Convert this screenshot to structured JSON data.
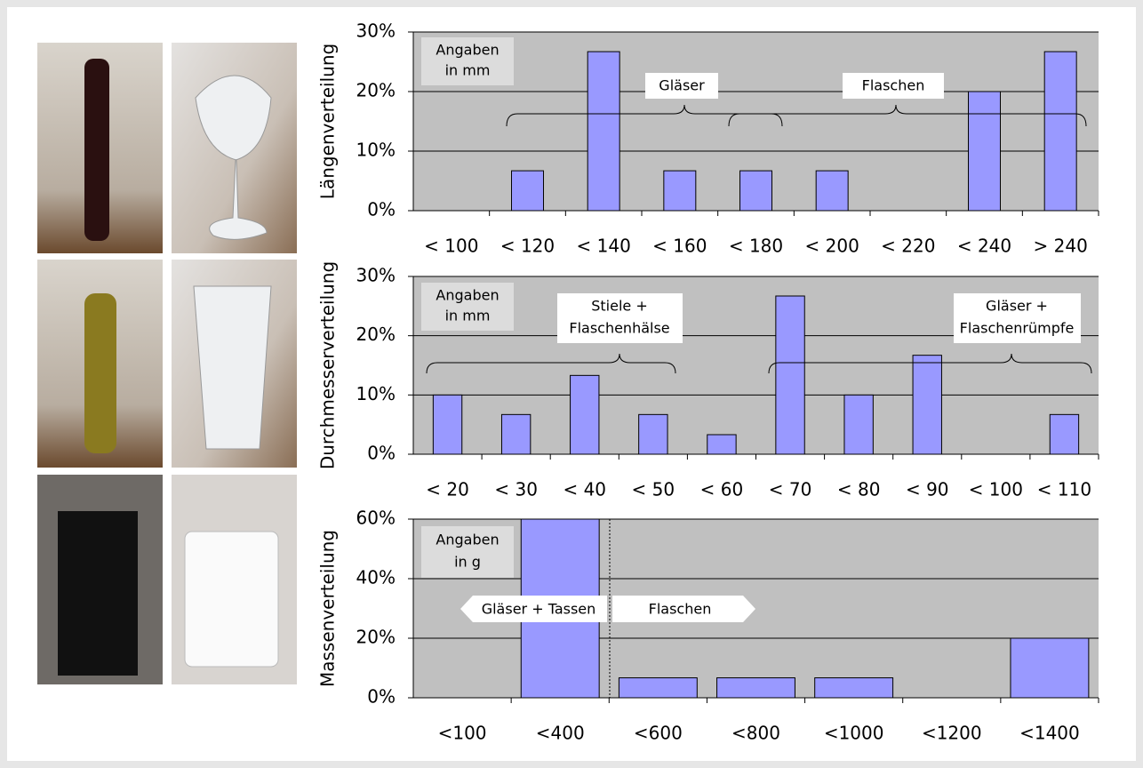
{
  "chart_data": [
    {
      "type": "bar",
      "y_label": "Längenverteilung",
      "categories": [
        "< 100",
        "< 120",
        "< 140",
        "< 160",
        "< 180",
        "< 200",
        "< 220",
        "< 240",
        "> 240"
      ],
      "values": [
        0,
        6.7,
        26.7,
        6.7,
        6.7,
        6.7,
        0,
        20,
        26.7
      ],
      "color": "#9999ff",
      "ylim": [
        0,
        30
      ],
      "yticks": [
        {
          "value": 0,
          "label": "0%"
        },
        {
          "value": 10,
          "label": "10%"
        },
        {
          "value": 20,
          "label": "20%"
        },
        {
          "value": 30,
          "label": "30%"
        }
      ],
      "grid": true,
      "annotations": [
        "Angaben",
        "in mm",
        "Gläser",
        "Flaschen"
      ]
    },
    {
      "type": "bar",
      "y_label": "Durchmesserverteilung",
      "categories": [
        "< 20",
        "< 30",
        "< 40",
        "< 50",
        "< 60",
        "< 70",
        "< 80",
        "< 90",
        "< 100",
        "< 110"
      ],
      "values": [
        10,
        6.7,
        13.3,
        6.7,
        3.3,
        26.7,
        10,
        16.7,
        0,
        6.7
      ],
      "color": "#9999ff",
      "ylim": [
        0,
        30
      ],
      "yticks": [
        {
          "value": 0,
          "label": "0%"
        },
        {
          "value": 10,
          "label": "10%"
        },
        {
          "value": 20,
          "label": "20%"
        },
        {
          "value": 30,
          "label": "30%"
        }
      ],
      "grid": true,
      "annotations": [
        "Angaben",
        "in mm",
        "Stiele +",
        "Flaschenhälse",
        "Gläser +",
        "Flaschenrümpfe"
      ]
    },
    {
      "type": "bar",
      "y_label": "Massenverteilung",
      "categories": [
        "<100",
        "<400",
        "<600",
        "<800",
        "<1000",
        "<1200",
        "<1400"
      ],
      "values": [
        0,
        60,
        6.7,
        6.7,
        6.7,
        0,
        20
      ],
      "color": "#9999ff",
      "ylim": [
        0,
        60
      ],
      "yticks": [
        {
          "value": 0,
          "label": "0%"
        },
        {
          "value": 20,
          "label": "20%"
        },
        {
          "value": 40,
          "label": "40%"
        },
        {
          "value": 60,
          "label": "60%"
        }
      ],
      "grid": true,
      "annotations": [
        "Angaben",
        "in g",
        "Gläser + Tassen",
        "Flaschen"
      ]
    }
  ]
}
